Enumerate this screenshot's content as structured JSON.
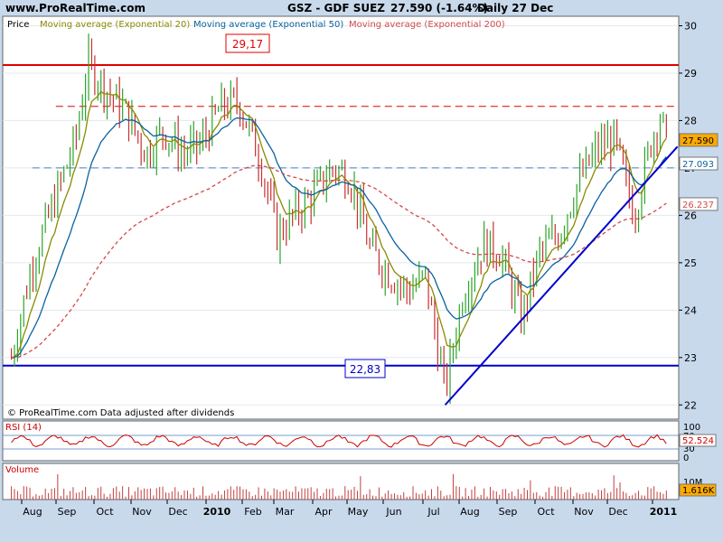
{
  "header": {
    "site": "www.ProRealTime.com",
    "instrument": "GSZ - GDF SUEZ",
    "price": "27.590 (-1.64%)",
    "period": "Daily  27 Dec"
  },
  "price_panel": {
    "legend": [
      {
        "label": "Price",
        "color": "#000000"
      },
      {
        "label": "Moving average (Exponential 20)",
        "color": "#8a8a00"
      },
      {
        "label": "Moving average (Exponential 50)",
        "color": "#0a62a0"
      },
      {
        "label": "Moving average (Exponential 200)",
        "color": "#d24a4a"
      }
    ],
    "footer": "© ProRealTime.com  Data adjusted after dividends",
    "annotations": [
      {
        "text": "29,17",
        "value": 29.17,
        "color": "#e00000"
      },
      {
        "text": "22,83",
        "value": 22.83,
        "color": "#0000cc"
      }
    ],
    "y_ticks": [
      "30",
      "29",
      "28",
      "27",
      "26",
      "25",
      "24",
      "23",
      "22"
    ],
    "price_tags": [
      {
        "text": "27.590",
        "value": 27.59,
        "bg": "#ffaa00",
        "color": "#000000"
      },
      {
        "text": "27.093",
        "value": 27.093,
        "bg": "#ffffff",
        "color": "#0a62a0"
      },
      {
        "text": "26.237",
        "value": 26.237,
        "bg": "#ffffff",
        "color": "#d24a4a"
      }
    ]
  },
  "rsi_panel": {
    "label": "RSI (14)",
    "ticks": [
      "100",
      "70",
      "30",
      "0"
    ],
    "value_tag": "52.524"
  },
  "volume_panel": {
    "label": "Volume",
    "ticks": [
      "10M",
      "0"
    ],
    "value_tag": "1.616K"
  },
  "x_axis": {
    "labels": [
      "Aug",
      "Sep",
      "Oct",
      "Nov",
      "Dec",
      "2010",
      "Feb",
      "Mar",
      "Apr",
      "May",
      "Jun",
      "Jul",
      "Aug",
      "Sep",
      "Oct",
      "Nov",
      "Dec",
      "2011"
    ]
  },
  "chart_data": {
    "type": "candlestick",
    "title": "GSZ - GDF SUEZ",
    "ylim": [
      21.7,
      30.2
    ],
    "horizontal_lines": [
      {
        "value": 29.17,
        "style": "solid",
        "color": "#e00000"
      },
      {
        "value": 28.3,
        "style": "dashed",
        "color": "#e00000"
      },
      {
        "value": 27.0,
        "style": "dashed",
        "color": "#4a7fc0"
      },
      {
        "value": 22.83,
        "style": "solid",
        "color": "#0000cc"
      }
    ],
    "trendline": {
      "from": {
        "date": "2010-07-01",
        "value": 22.0
      },
      "to": {
        "date": "2011-01-05",
        "value": 27.45
      },
      "color": "#0000cc"
    },
    "close_series": [
      {
        "date": "2009-07-15",
        "value": 23.0
      },
      {
        "date": "2009-08-01",
        "value": 25.0
      },
      {
        "date": "2009-08-20",
        "value": 26.4
      },
      {
        "date": "2009-09-05",
        "value": 27.6
      },
      {
        "date": "2009-09-15",
        "value": 29.2
      },
      {
        "date": "2009-10-01",
        "value": 28.6
      },
      {
        "date": "2009-10-15",
        "value": 28.2
      },
      {
        "date": "2009-11-01",
        "value": 27.3
      },
      {
        "date": "2009-11-15",
        "value": 27.8
      },
      {
        "date": "2009-12-01",
        "value": 27.3
      },
      {
        "date": "2009-12-15",
        "value": 27.5
      },
      {
        "date": "2010-01-01",
        "value": 28.3
      },
      {
        "date": "2010-01-15",
        "value": 28.4
      },
      {
        "date": "2010-02-01",
        "value": 27.2
      },
      {
        "date": "2010-02-15",
        "value": 25.6
      },
      {
        "date": "2010-03-01",
        "value": 26.0
      },
      {
        "date": "2010-03-15",
        "value": 26.4
      },
      {
        "date": "2010-04-01",
        "value": 27.0
      },
      {
        "date": "2010-04-15",
        "value": 26.8
      },
      {
        "date": "2010-05-01",
        "value": 25.3
      },
      {
        "date": "2010-05-15",
        "value": 24.8
      },
      {
        "date": "2010-06-01",
        "value": 24.4
      },
      {
        "date": "2010-06-15",
        "value": 24.7
      },
      {
        "date": "2010-07-01",
        "value": 22.3
      },
      {
        "date": "2010-07-15",
        "value": 24.3
      },
      {
        "date": "2010-08-01",
        "value": 25.4
      },
      {
        "date": "2010-08-15",
        "value": 25.2
      },
      {
        "date": "2010-09-01",
        "value": 23.8
      },
      {
        "date": "2010-09-15",
        "value": 25.2
      },
      {
        "date": "2010-10-01",
        "value": 25.6
      },
      {
        "date": "2010-10-15",
        "value": 26.6
      },
      {
        "date": "2010-11-01",
        "value": 27.4
      },
      {
        "date": "2010-11-15",
        "value": 27.6
      },
      {
        "date": "2010-12-01",
        "value": 26.0
      },
      {
        "date": "2010-12-15",
        "value": 27.6
      },
      {
        "date": "2010-12-22",
        "value": 28.1
      },
      {
        "date": "2010-12-27",
        "value": 27.59
      }
    ],
    "ema20_last": 27.59,
    "ema50_last": 27.093,
    "ema200_last": 26.237,
    "rsi_last": 52.524
  }
}
